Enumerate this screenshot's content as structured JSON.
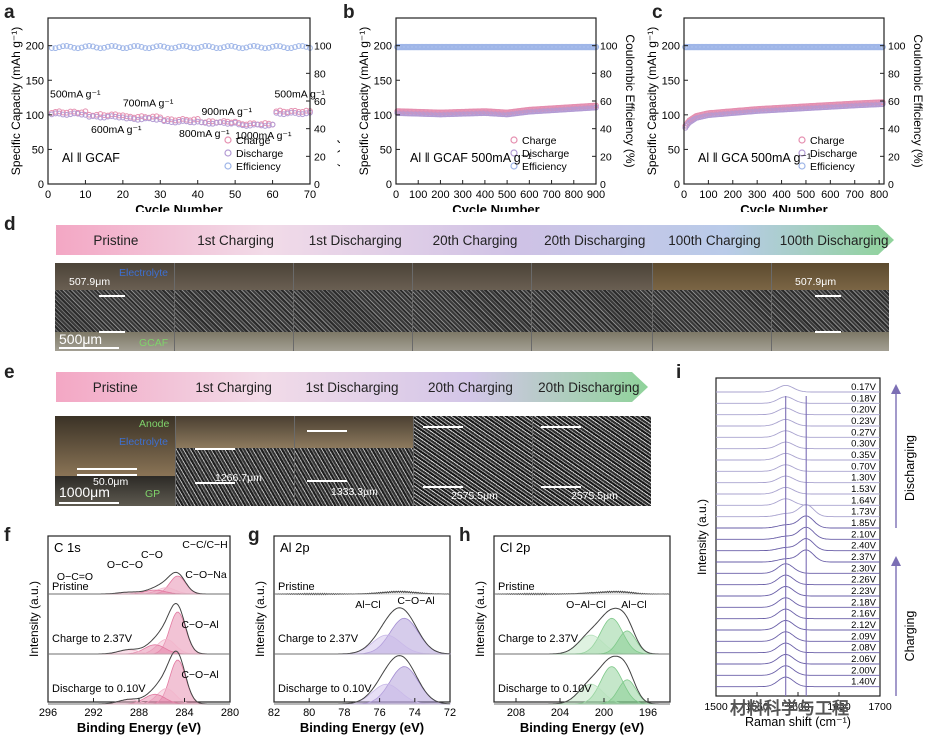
{
  "panels": {
    "a": "a",
    "b": "b",
    "c": "c",
    "d": "d",
    "e": "e",
    "f": "f",
    "g": "g",
    "h": "h",
    "i": "i"
  },
  "colors": {
    "charge": "#e58fb0",
    "discharge": "#b39bd4",
    "efficiency": "#9fb6e8",
    "xps_pink": "#e27aa1",
    "xps_purple": "#a38dd2",
    "xps_green": "#7fc98a",
    "raman_line": "#7c6fb5"
  },
  "chart_data": [
    {
      "id": "a",
      "type": "scatter",
      "xlabel": "Cycle Number",
      "ylabel": "Specific Capacity (mAh g⁻¹)",
      "y2label": "Coulombic Efficiency (%)",
      "xlim": [
        0,
        70
      ],
      "ylim": [
        0,
        240
      ],
      "y2lim": [
        0,
        120
      ],
      "xticks": [
        "0",
        "10",
        "20",
        "30",
        "40",
        "50",
        "60",
        "70"
      ],
      "yticks": [
        "0",
        "50",
        "100",
        "150",
        "200"
      ],
      "y2ticks": [
        "0",
        "20",
        "40",
        "60",
        "80",
        "100"
      ],
      "cell_label": "Al ‖ GCAF",
      "legend": [
        "Charge",
        "Discharge",
        "Efficiency"
      ],
      "rate_labels": [
        "500mA g⁻¹",
        "600mA g⁻¹",
        "700mA g⁻¹",
        "800mA g⁻¹",
        "900mA g⁻¹",
        "1000mA g⁻¹",
        "500mA g⁻¹"
      ],
      "segments": [
        {
          "from": 1,
          "to": 10,
          "charge": 104,
          "discharge": 101
        },
        {
          "from": 11,
          "to": 20,
          "charge": 100,
          "discharge": 97
        },
        {
          "from": 21,
          "to": 30,
          "charge": 97,
          "discharge": 94
        },
        {
          "from": 31,
          "to": 40,
          "charge": 93,
          "discharge": 90
        },
        {
          "from": 41,
          "to": 50,
          "charge": 90,
          "discharge": 88
        },
        {
          "from": 51,
          "to": 60,
          "charge": 87,
          "discharge": 85
        },
        {
          "from": 61,
          "to": 70,
          "charge": 105,
          "discharge": 102
        }
      ],
      "efficiency": 99
    },
    {
      "id": "b",
      "type": "scatter",
      "xlabel": "Cycle Number",
      "ylabel": "Specific Capacity (mAh g⁻¹)",
      "y2label": "Coulombic Efficiency (%)",
      "xlim": [
        0,
        900
      ],
      "ylim": [
        0,
        240
      ],
      "y2lim": [
        0,
        120
      ],
      "xticks": [
        "0",
        "100",
        "200",
        "300",
        "400",
        "500",
        "600",
        "700",
        "800",
        "900"
      ],
      "yticks": [
        "0",
        "50",
        "100",
        "150",
        "200"
      ],
      "y2ticks": [
        "0",
        "20",
        "40",
        "60",
        "80",
        "100"
      ],
      "cell_label": "Al ‖ GCAF  500mA g⁻¹",
      "legend": [
        "Charge",
        "Discharge",
        "Efficiency"
      ],
      "capacity_points": [
        [
          0,
          104
        ],
        [
          100,
          103
        ],
        [
          200,
          102
        ],
        [
          300,
          103
        ],
        [
          400,
          104
        ],
        [
          500,
          102
        ],
        [
          600,
          106
        ],
        [
          700,
          108
        ],
        [
          800,
          110
        ],
        [
          900,
          112
        ]
      ],
      "efficiency": 99
    },
    {
      "id": "c",
      "type": "scatter",
      "xlabel": "Cycle Number",
      "ylabel": "Specific Capacity (mAh g⁻¹)",
      "y2label": "Coulombic Efficiency (%)",
      "xlim": [
        0,
        820
      ],
      "ylim": [
        0,
        240
      ],
      "y2lim": [
        0,
        120
      ],
      "xticks": [
        "0",
        "100",
        "200",
        "300",
        "400",
        "500",
        "600",
        "700",
        "800"
      ],
      "yticks": [
        "0",
        "50",
        "100",
        "150",
        "200"
      ],
      "y2ticks": [
        "0",
        "20",
        "40",
        "60",
        "80",
        "100"
      ],
      "cell_label": "Al ‖ GCA  500mA g⁻¹",
      "legend": [
        "Charge",
        "Discharge",
        "Efficiency"
      ],
      "capacity_points": [
        [
          0,
          80
        ],
        [
          20,
          90
        ],
        [
          50,
          97
        ],
        [
          100,
          101
        ],
        [
          200,
          104
        ],
        [
          300,
          107
        ],
        [
          400,
          109
        ],
        [
          500,
          111
        ],
        [
          600,
          113
        ],
        [
          700,
          115
        ],
        [
          820,
          117
        ]
      ],
      "efficiency": 99
    },
    {
      "id": "f",
      "type": "line",
      "title": "C 1s",
      "xlabel": "Binding Energy (eV)",
      "ylabel": "Intensity (a.u.)",
      "xlim": [
        296,
        280
      ],
      "xticks": [
        "296",
        "292",
        "288",
        "284",
        "280"
      ],
      "traces": [
        "Pristine",
        "Charge to 2.37V",
        "Discharge to 0.10V"
      ],
      "peak_labels": [
        "O−C=O",
        "O−C−O",
        "C−O",
        "C−C/C−H",
        "C−O−Na",
        "C−O−Al",
        "C−O−Al"
      ]
    },
    {
      "id": "g",
      "type": "line",
      "title": "Al 2p",
      "xlabel": "Binding Energy (eV)",
      "ylabel": "Intensity (a.u.)",
      "xlim": [
        82,
        72
      ],
      "xticks": [
        "82",
        "80",
        "78",
        "76",
        "74",
        "72"
      ],
      "traces": [
        "Pristine",
        "Charge to 2.37V",
        "Discharge to 0.10V"
      ],
      "peak_labels": [
        "Al−Cl",
        "C−O−Al"
      ]
    },
    {
      "id": "h",
      "type": "line",
      "title": "Cl 2p",
      "xlabel": "Binding Energy (eV)",
      "ylabel": "Intensity (a.u.)",
      "xlim": [
        210,
        194
      ],
      "xticks": [
        "208",
        "204",
        "200",
        "196"
      ],
      "traces": [
        "Pristine",
        "Charge to 2.37V",
        "Discharge to 0.10V"
      ],
      "peak_labels": [
        "O−Al−Cl",
        "Al−Cl"
      ]
    },
    {
      "id": "i",
      "type": "line",
      "xlabel": "Raman shift (cm⁻¹)",
      "ylabel": "Intensity (a.u.)",
      "xlim": [
        1500,
        1700
      ],
      "xticks": [
        "1500",
        "1550",
        "1600",
        "1650",
        "1700"
      ],
      "voltages": [
        "0.17V",
        "0.18V",
        "0.20V",
        "0.23V",
        "0.27V",
        "0.30V",
        "0.35V",
        "0.70V",
        "1.30V",
        "1.53V",
        "1.64V",
        "1.73V",
        "1.85V",
        "2.10V",
        "2.40V",
        "2.37V",
        "2.30V",
        "2.26V",
        "2.23V",
        "2.18V",
        "2.16V",
        "2.12V",
        "2.09V",
        "2.08V",
        "2.06V",
        "2.00V",
        "1.40V"
      ],
      "discharging_label": "Discharging",
      "charging_label": "Charging"
    }
  ],
  "panel_d": {
    "stages": [
      "Pristine",
      "1st Charging",
      "1st Discharging",
      "20th Charging",
      "20th Discharging",
      "100th Charging",
      "100th Discharging"
    ],
    "thickness_left": "507.9μm",
    "thickness_right": "507.9μm",
    "electrolyte_label": "Electrolyte",
    "gcaf_label": "GCAF",
    "scale_bar": "500μm"
  },
  "panel_e": {
    "stages": [
      "Pristine",
      "1st Charging",
      "1st Discharging",
      "20th Charging",
      "20th Discharging"
    ],
    "thicknesses": [
      "50.0μm",
      "1266.7μm",
      "1333.3μm",
      "2575.5μm",
      "2575.5μm"
    ],
    "anode_label": "Anode",
    "electrolyte_label": "Electrolyte",
    "gp_label": "GP",
    "scale_bar": "1000μm"
  },
  "watermark": "材料科学与工程"
}
